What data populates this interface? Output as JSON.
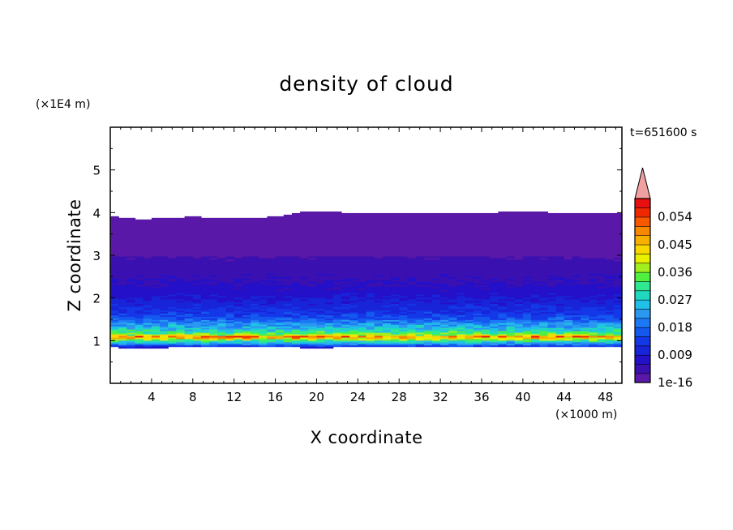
{
  "chart_data": {
    "type": "heatmap",
    "title": "density of cloud",
    "xlabel": "X coordinate",
    "ylabel": "Z coordinate",
    "x_unit": "(×1000 m)",
    "y_unit": "(×1E4 m)",
    "time_label": "t=651600 s",
    "xlim": [
      0,
      49.6
    ],
    "ylim": [
      0,
      6.0
    ],
    "x_ticks": [
      "4",
      "8",
      "12",
      "16",
      "20",
      "24",
      "28",
      "32",
      "36",
      "40",
      "44",
      "48"
    ],
    "y_ticks": [
      "1",
      "2",
      "3",
      "4",
      "5"
    ],
    "colorbar": {
      "tick_labels": [
        "1e-16",
        "0.009",
        "0.018",
        "0.027",
        "0.036",
        "0.045",
        "0.054"
      ],
      "range": [
        0,
        0.06
      ],
      "colors": [
        "#5a18a8",
        "#3a10b0",
        "#2410c8",
        "#1824d8",
        "#1438e8",
        "#1458f0",
        "#1c78f4",
        "#2a98f0",
        "#20c0e8",
        "#20d8c0",
        "#30e890",
        "#50f040",
        "#a0f020",
        "#e8f000",
        "#f8d800",
        "#f8b000",
        "#f88800",
        "#f85800",
        "#f02800",
        "#e81010"
      ],
      "extend_color": "#f0a0a0"
    },
    "profile": {
      "z": [
        0.85,
        0.95,
        1.0,
        1.05,
        1.1,
        1.15,
        1.2,
        1.3,
        1.4,
        1.5,
        1.6,
        1.8,
        2.0,
        2.2,
        2.4,
        2.6,
        2.8,
        3.0,
        3.5,
        3.9
      ],
      "density": [
        0.009,
        0.024,
        0.03,
        0.04,
        0.052,
        0.035,
        0.032,
        0.025,
        0.022,
        0.017,
        0.014,
        0.011,
        0.009,
        0.007,
        0.006,
        0.005,
        0.004,
        0.003,
        0.001,
        0.0
      ]
    },
    "cloud_top": {
      "x": [
        0,
        3,
        6,
        8,
        12,
        16,
        18,
        20,
        24,
        28,
        32,
        36,
        40,
        44,
        48,
        49.6
      ],
      "z": [
        3.92,
        3.85,
        3.88,
        3.9,
        3.88,
        3.9,
        4.0,
        4.02,
        4.0,
        3.98,
        3.98,
        4.0,
        4.02,
        4.0,
        3.98,
        3.98
      ]
    },
    "cloud_base": {
      "x": [
        0,
        3,
        6,
        18,
        20,
        22,
        49.6
      ],
      "z": [
        0.85,
        0.82,
        0.85,
        0.85,
        0.8,
        0.85,
        0.85
      ]
    }
  }
}
